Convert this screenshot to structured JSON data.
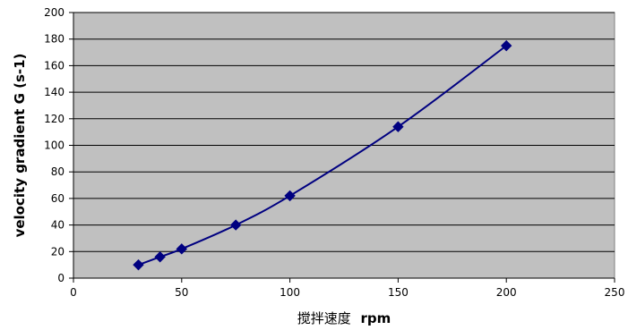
{
  "chart_data": {
    "type": "line",
    "title": "",
    "xlabel_cn": "搅拌速度",
    "xlabel_en": "rpm",
    "ylabel": "velocity gradient G (s-1)",
    "xlim": [
      0,
      250
    ],
    "ylim": [
      0,
      200
    ],
    "xticks": [
      0,
      50,
      100,
      150,
      200,
      250
    ],
    "yticks": [
      0,
      20,
      40,
      60,
      80,
      100,
      120,
      140,
      160,
      180,
      200
    ],
    "grid": "horizontal",
    "legend": "none",
    "plot_background": "#c0c0c0",
    "series": [
      {
        "color": "#000080",
        "marker": "diamond",
        "x": [
          30,
          40,
          50,
          75,
          100,
          150,
          200
        ],
        "y": [
          10,
          16,
          22,
          40,
          62,
          114,
          175
        ]
      }
    ]
  }
}
